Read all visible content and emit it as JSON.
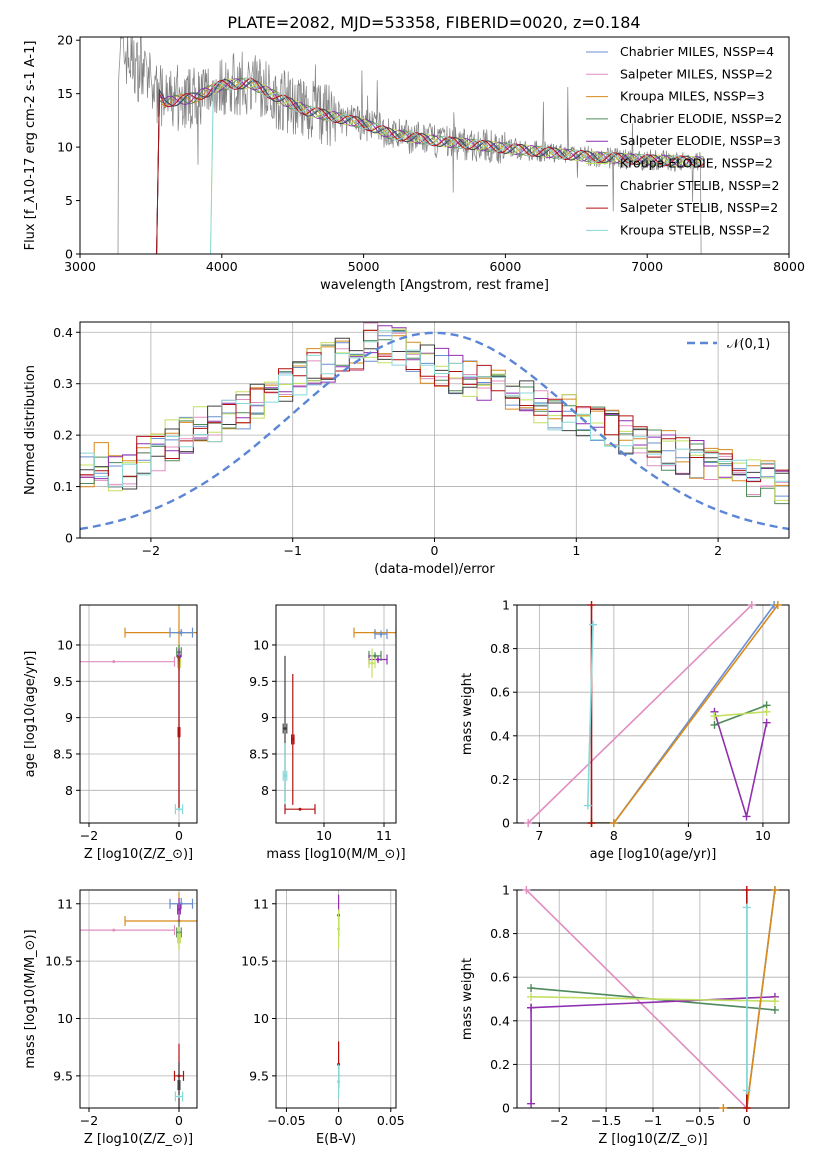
{
  "title": "PLATE=2082, MJD=53358, FIBERID=0020, z=0.184",
  "series": [
    {
      "name": "Chabrier MILES, N$_{SSP}$=4",
      "color": "#6a8fd0"
    },
    {
      "name": "Salpeter MILES, N$_{SSP}$=2",
      "color": "#e08ec0"
    },
    {
      "name": "Kroupa MILES, N$_{SSP}$=3",
      "color": "#d88a1c"
    },
    {
      "name": "Chabrier ELODIE, N$_{SSP}$=2",
      "color": "#4f8a5a"
    },
    {
      "name": "Salpeter ELODIE, N$_{SSP}$=3",
      "color": "#9030b0"
    },
    {
      "name": "Kroupa ELODIE, N$_{SSP}$=2",
      "color": "#c4e060"
    },
    {
      "name": "Chabrier STELIB, N$_{SSP}$=2",
      "color": "#404040"
    },
    {
      "name": "Salpeter STELIB, N$_{SSP}$=2",
      "color": "#b01010"
    },
    {
      "name": "Kroupa STELIB, N$_{SSP}$=2",
      "color": "#88d8d8"
    }
  ],
  "chart_data": [
    {
      "id": "spectrum",
      "type": "line",
      "xlabel": "wavelength [Angstrom, rest frame]",
      "ylabel": "Flux [f$_\\lambda$10$^{-17}$ erg cm$^{-2}$ s$^{-1}$ A$^{-1}$]",
      "xlim": [
        3000,
        8000
      ],
      "ylim": [
        0,
        20.3
      ],
      "xticks": [
        3000,
        4000,
        5000,
        6000,
        7000,
        8000
      ],
      "yticks": [
        0,
        5,
        10,
        15,
        20
      ],
      "grid": false,
      "legend": "right",
      "data_color": "#808080",
      "data_range": [
        3200,
        7400
      ],
      "model_x": [
        3300,
        3600,
        3800,
        4000,
        4200,
        4400,
        4600,
        4800,
        5000,
        5200,
        5500,
        5800,
        6000,
        6300,
        6600,
        7000,
        7400
      ],
      "model_y": [
        19.0,
        14.2,
        14.6,
        15.8,
        16.0,
        14.6,
        13.4,
        12.8,
        12.2,
        11.2,
        10.6,
        10.2,
        9.9,
        9.5,
        9.1,
        8.8,
        8.6
      ],
      "model_start": [
        3560,
        3560,
        3560,
        3560,
        3560,
        3930,
        3560,
        3560,
        3930
      ]
    },
    {
      "id": "residuals",
      "type": "bar",
      "xlabel": "(data-model)/error",
      "ylabel": "Normed distribution",
      "xlim": [
        -2.5,
        2.5
      ],
      "ylim": [
        0,
        0.42
      ],
      "xticks": [
        -2,
        -1,
        0,
        1,
        2
      ],
      "yticks": [
        0.0,
        0.1,
        0.2,
        0.3,
        0.4
      ],
      "grid": true,
      "legend": "top-right",
      "gauss_label": "$\\mathcal{N}(0,1)$",
      "gauss_color": "#5b86d6",
      "bin_width": 0.1,
      "envelope": [
        0.13,
        0.15,
        0.13,
        0.13,
        0.16,
        0.17,
        0.19,
        0.2,
        0.22,
        0.22,
        0.24,
        0.25,
        0.26,
        0.28,
        0.3,
        0.31,
        0.33,
        0.34,
        0.35,
        0.36,
        0.38,
        0.38,
        0.37,
        0.35,
        0.34,
        0.33,
        0.32,
        0.31,
        0.3,
        0.29,
        0.28,
        0.27,
        0.26,
        0.25,
        0.24,
        0.23,
        0.22,
        0.21,
        0.2,
        0.19,
        0.18,
        0.17,
        0.16,
        0.155,
        0.15,
        0.14,
        0.13,
        0.12,
        0.11,
        0.1,
        0.09,
        0.085,
        0.08,
        0.075,
        0.07,
        0.065,
        0.06,
        0.055,
        0.05,
        0.045,
        0.04,
        0.035,
        0.035,
        0.03,
        0.03,
        0.028,
        0.025,
        0.022,
        0.02,
        0.018
      ]
    },
    {
      "id": "age-vs-z",
      "type": "scatter",
      "xlabel": "Z [log$_{10}$($Z/Z_\\odot$)]",
      "ylabel": "age  [log$_{10}$($age/yr$)]",
      "xlim": [
        -2.2,
        0.4
      ],
      "ylim": [
        7.55,
        10.55
      ],
      "xticks": [
        -2,
        0
      ],
      "yticks": [
        8.0,
        8.5,
        9.0,
        9.5,
        10.0
      ],
      "grid": true,
      "points": [
        {
          "s": 1,
          "x": -1.45,
          "y": 9.77,
          "xe": 1.35,
          "ye": 0.0
        },
        {
          "s": 2,
          "x": 0.0,
          "y": 10.17,
          "xe": 1.2,
          "ye": 0.4
        },
        {
          "s": 0,
          "x": 0.05,
          "y": 10.17,
          "xe": 0.25,
          "ye": 0.05
        },
        {
          "s": 3,
          "x": 0.0,
          "y": 9.9,
          "xe": 0.05,
          "ye": 0.1
        },
        {
          "s": 4,
          "x": 0.0,
          "y": 9.8,
          "xe": 0.03,
          "ye": 0.15
        },
        {
          "s": 5,
          "x": 0.0,
          "y": 9.75,
          "xe": 0.03,
          "ye": 0.1
        },
        {
          "s": 6,
          "x": 0.0,
          "y": 8.8,
          "xe": 0.02,
          "ye": 1.05
        },
        {
          "s": 7,
          "x": 0.0,
          "y": 8.8,
          "xe": 0.02,
          "ye": 1.05
        },
        {
          "s": 8,
          "x": 0.0,
          "y": 7.74,
          "xe": 0.08,
          "ye": 0.0
        }
      ]
    },
    {
      "id": "age-vs-mass",
      "type": "scatter",
      "xlabel": "mass [log$_{10}$($M/M_\\odot$)]",
      "ylabel": "",
      "xlim": [
        9.2,
        11.2
      ],
      "ylim": [
        7.55,
        10.55
      ],
      "xticks": [
        10,
        11
      ],
      "yticks": [
        8.0,
        8.5,
        9.0,
        9.5,
        10.0
      ],
      "grid": true,
      "points": [
        {
          "s": 2,
          "x": 10.85,
          "y": 10.17,
          "xe": 0.35,
          "ye": 0.0
        },
        {
          "s": 0,
          "x": 10.95,
          "y": 10.15,
          "xe": 0.1,
          "ye": 0.05
        },
        {
          "s": 3,
          "x": 10.85,
          "y": 9.85,
          "xe": 0.1,
          "ye": 0.05
        },
        {
          "s": 4,
          "x": 10.9,
          "y": 9.8,
          "xe": 0.15,
          "ye": 0.05
        },
        {
          "s": 5,
          "x": 10.8,
          "y": 9.75,
          "xe": 0.05,
          "ye": 0.2
        },
        {
          "s": 6,
          "x": 9.35,
          "y": 8.85,
          "xe": 0.03,
          "ye": 1.0
        },
        {
          "s": 7,
          "x": 9.48,
          "y": 8.7,
          "xe": 0.02,
          "ye": 0.9
        },
        {
          "s": 8,
          "x": 9.35,
          "y": 8.2,
          "xe": 0.03,
          "ye": 0.45
        },
        {
          "s": 7,
          "x": 9.6,
          "y": 7.74,
          "xe": 0.25,
          "ye": 0.0
        }
      ]
    },
    {
      "id": "massweight-vs-age",
      "type": "line",
      "xlabel": "age  [log$_{10}$($age/yr$)]",
      "ylabel": "mass weight",
      "xlim": [
        6.7,
        10.35
      ],
      "ylim": [
        0,
        1.0
      ],
      "xticks": [
        7,
        8,
        9,
        10
      ],
      "yticks": [
        0.0,
        0.2,
        0.4,
        0.6,
        0.8,
        1.0
      ],
      "grid": true,
      "lines": [
        {
          "s": 1,
          "x": [
            6.85,
            9.85
          ],
          "y": [
            0.0,
            1.0
          ]
        },
        {
          "s": 0,
          "x": [
            7.7,
            8.0,
            10.15
          ],
          "y": [
            0.0,
            0.0,
            1.0
          ]
        },
        {
          "s": 2,
          "x": [
            7.7,
            8.0,
            10.2
          ],
          "y": [
            0.0,
            0.0,
            1.0
          ]
        },
        {
          "s": 3,
          "x": [
            9.35,
            10.05
          ],
          "y": [
            0.45,
            0.54
          ]
        },
        {
          "s": 4,
          "x": [
            9.35,
            9.78,
            10.05
          ],
          "y": [
            0.51,
            0.03,
            0.46
          ]
        },
        {
          "s": 5,
          "x": [
            9.35,
            10.05
          ],
          "y": [
            0.49,
            0.51
          ]
        },
        {
          "s": 7,
          "x": [
            7.7,
            7.7
          ],
          "y": [
            0.0,
            1.0
          ]
        },
        {
          "s": 8,
          "x": [
            7.65,
            7.72
          ],
          "y": [
            0.08,
            0.91
          ]
        }
      ]
    },
    {
      "id": "mass-vs-z",
      "type": "scatter",
      "xlabel": "Z [log$_{10}$($Z/Z_\\odot$)]",
      "ylabel": "mass [log$_{10}$($M/M_\\odot$)]",
      "xlim": [
        -2.2,
        0.4
      ],
      "ylim": [
        9.22,
        11.12
      ],
      "xticks": [
        -2,
        0
      ],
      "yticks": [
        9.5,
        10.0,
        10.5,
        11.0
      ],
      "grid": true,
      "points": [
        {
          "s": 1,
          "x": -1.45,
          "y": 10.77,
          "xe": 1.35,
          "ye": 0.0
        },
        {
          "s": 2,
          "x": 0.0,
          "y": 10.85,
          "xe": 1.2,
          "ye": 0.25
        },
        {
          "s": 0,
          "x": 0.05,
          "y": 11.0,
          "xe": 0.25,
          "ye": 0.05
        },
        {
          "s": 3,
          "x": 0.0,
          "y": 10.75,
          "xe": 0.05,
          "ye": 0.1
        },
        {
          "s": 4,
          "x": 0.0,
          "y": 10.95,
          "xe": 0.03,
          "ye": 0.1
        },
        {
          "s": 5,
          "x": 0.0,
          "y": 10.7,
          "xe": 0.03,
          "ye": 0.1
        },
        {
          "s": 7,
          "x": 0.0,
          "y": 9.5,
          "xe": 0.1,
          "ye": 0.28
        },
        {
          "s": 6,
          "x": 0.0,
          "y": 9.42,
          "xe": 0.02,
          "ye": 0.2
        },
        {
          "s": 8,
          "x": 0.0,
          "y": 9.32,
          "xe": 0.08,
          "ye": 0.0
        }
      ]
    },
    {
      "id": "mass-vs-ebv",
      "type": "scatter",
      "xlabel": "E(B-V)",
      "ylabel": "",
      "xlim": [
        -0.06,
        0.055
      ],
      "ylim": [
        9.22,
        11.12
      ],
      "xticks": [
        -0.05,
        0.0,
        0.05
      ],
      "yticks": [
        9.5,
        10.0,
        10.5,
        11.0
      ],
      "grid": true,
      "points": [
        {
          "s": 4,
          "x": 0.0,
          "y": 10.9,
          "xe": 0.0,
          "ye": 0.18
        },
        {
          "s": 5,
          "x": 0.0,
          "y": 10.78,
          "xe": 0.0,
          "ye": 0.17
        },
        {
          "s": 7,
          "x": 0.0,
          "y": 9.6,
          "xe": 0.0,
          "ye": 0.2
        },
        {
          "s": 8,
          "x": 0.0,
          "y": 9.45,
          "xe": 0.0,
          "ye": 0.15
        }
      ]
    },
    {
      "id": "massweight-vs-z",
      "type": "line",
      "xlabel": "Z [log$_{10}$($Z/Z_\\odot$)]",
      "ylabel": "mass weight",
      "xlim": [
        -2.45,
        0.45
      ],
      "ylim": [
        0,
        1.0
      ],
      "xticks": [
        -2.0,
        -1.5,
        -1.0,
        -0.5,
        0.0
      ],
      "yticks": [
        0.0,
        0.2,
        0.4,
        0.6,
        0.8,
        1.0
      ],
      "grid": true,
      "lines": [
        {
          "s": 1,
          "x": [
            -2.35,
            0.0
          ],
          "y": [
            1.0,
            0.0
          ]
        },
        {
          "s": 3,
          "x": [
            -2.3,
            0.3
          ],
          "y": [
            0.55,
            0.45
          ]
        },
        {
          "s": 4,
          "x": [
            -2.3,
            0.3
          ],
          "y": [
            0.46,
            0.51
          ]
        },
        {
          "s": 5,
          "x": [
            -2.3,
            0.3
          ],
          "y": [
            0.51,
            0.49
          ]
        },
        {
          "s": 4,
          "x": [
            -2.3,
            -2.3
          ],
          "y": [
            0.02,
            0.46
          ]
        },
        {
          "s": 0,
          "x": [
            0.0,
            0.3
          ],
          "y": [
            0.0,
            1.0
          ]
        },
        {
          "s": 2,
          "x": [
            -0.25,
            0.0,
            0.3
          ],
          "y": [
            0.0,
            0.0,
            1.0
          ]
        },
        {
          "s": 7,
          "x": [
            0.0,
            0.0
          ],
          "y": [
            0.0,
            1.0
          ]
        },
        {
          "s": 8,
          "x": [
            0.0,
            0.0
          ],
          "y": [
            0.08,
            0.92
          ]
        }
      ]
    }
  ]
}
